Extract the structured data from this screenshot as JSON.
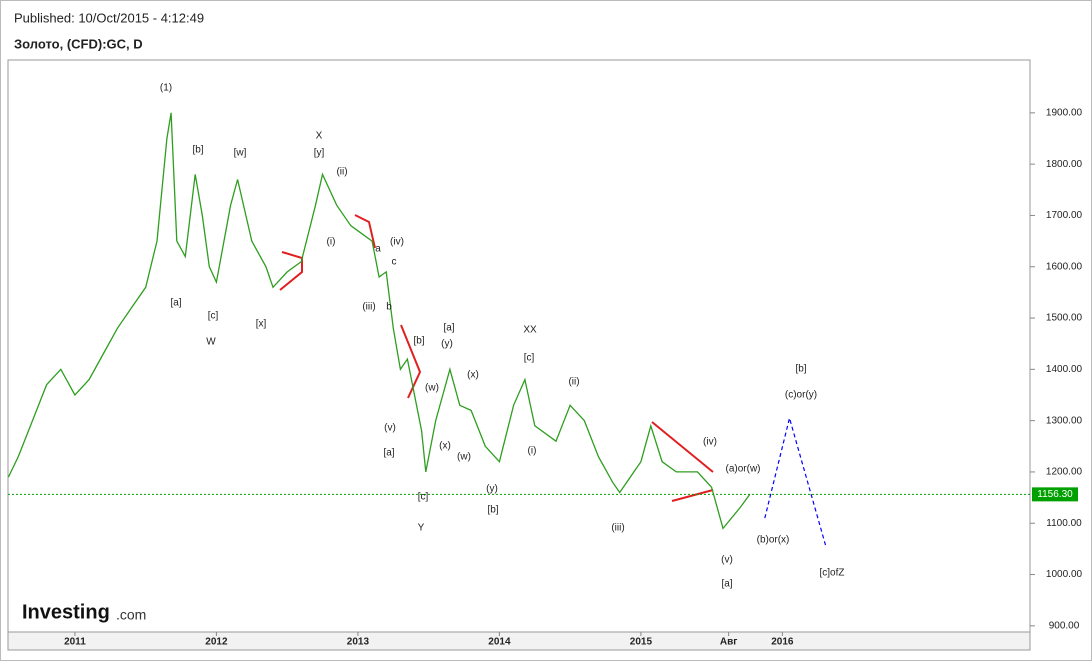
{
  "chart_data": {
    "type": "line",
    "title": "Published: 10/Oct/2015 - 4:12:49",
    "subtitle": "Золото, (CFD):GC, D",
    "x": [
      2010.53,
      2010.6,
      2010.7,
      2010.8,
      2010.9,
      2011.0,
      2011.1,
      2011.2,
      2011.3,
      2011.4,
      2011.5,
      2011.58,
      2011.65,
      2011.68,
      2011.72,
      2011.78,
      2011.85,
      2011.9,
      2011.95,
      2012.0,
      2012.1,
      2012.15,
      2012.25,
      2012.35,
      2012.4,
      2012.5,
      2012.6,
      2012.7,
      2012.75,
      2012.85,
      2012.95,
      2013.0,
      2013.1,
      2013.15,
      2013.2,
      2013.25,
      2013.3,
      2013.35,
      2013.45,
      2013.48,
      2013.55,
      2013.65,
      2013.72,
      2013.8,
      2013.9,
      2014.0,
      2014.1,
      2014.18,
      2014.25,
      2014.4,
      2014.5,
      2014.6,
      2014.7,
      2014.8,
      2014.85,
      2015.0,
      2015.07,
      2015.15,
      2015.25,
      2015.4,
      2015.5,
      2015.58,
      2015.7,
      2015.77
    ],
    "series": [
      {
        "color": "#2e9e1f",
        "values": [
          1190,
          1230,
          1300,
          1370,
          1400,
          1350,
          1380,
          1430,
          1480,
          1520,
          1560,
          1650,
          1850,
          1900,
          1650,
          1620,
          1780,
          1700,
          1600,
          1570,
          1720,
          1770,
          1650,
          1600,
          1560,
          1590,
          1610,
          1720,
          1780,
          1720,
          1680,
          1670,
          1650,
          1580,
          1590,
          1480,
          1400,
          1420,
          1280,
          1200,
          1300,
          1400,
          1330,
          1320,
          1250,
          1220,
          1330,
          1380,
          1290,
          1260,
          1330,
          1300,
          1230,
          1180,
          1160,
          1220,
          1290,
          1220,
          1200,
          1200,
          1170,
          1090,
          1130,
          1156.3
        ]
      },
      {
        "color": "#0000ff",
        "x": [
          2015.876,
          2016.05,
          2016.31
        ],
        "values": [
          1110,
          1305,
          1052
        ]
      }
    ],
    "last_price": {
      "value": 1156.3,
      "label": "1156.30",
      "color": "#00a000"
    },
    "xlim": [
      2010.527,
      2017.75
    ],
    "xticks": [
      2011,
      2012,
      2013,
      2014,
      2015,
      {
        "value": 2015.62,
        "label": "Авг"
      },
      2016
    ],
    "ylim": [
      888,
      2003
    ],
    "yticks": [
      {
        "value": 900,
        "label": "900.00"
      },
      {
        "value": 1000,
        "label": "1000.00"
      },
      {
        "value": 1100,
        "label": "1100.00"
      },
      {
        "value": 1200,
        "label": "1200.00"
      },
      {
        "value": 1300,
        "label": "1300.00"
      },
      {
        "value": 1400,
        "label": "1400.00"
      },
      {
        "value": 1500,
        "label": "1500.00"
      },
      {
        "value": 1600,
        "label": "1600.00"
      },
      {
        "value": 1700,
        "label": "1700.00"
      },
      {
        "value": 1800,
        "label": "1800.00"
      },
      {
        "value": 1900,
        "label": "1900.00"
      }
    ],
    "annotations": [
      "(1)",
      "[b]",
      "[w]",
      "X",
      "[y]",
      "(ii)",
      "(i)",
      "a",
      "(iv)",
      "c",
      "[a]",
      "[c]",
      "W",
      "[x]",
      "(iii)",
      "b",
      "[b]",
      "[a]",
      "(y)",
      "XX",
      "[c]",
      "(x)",
      "(w)",
      "(ii)",
      "(v)",
      "[a]",
      "(x)",
      "(i)",
      "(w)",
      "(y)",
      "[c]",
      "[b]",
      "Y",
      "(iii)",
      "(iv)",
      "(a)or(w)",
      "[b]",
      "(c)or(y)",
      "(b)or(x)",
      "(v)",
      "[a]",
      "[c]ofZ"
    ],
    "logo": "Investing",
    "logo_suffix": ".com"
  }
}
